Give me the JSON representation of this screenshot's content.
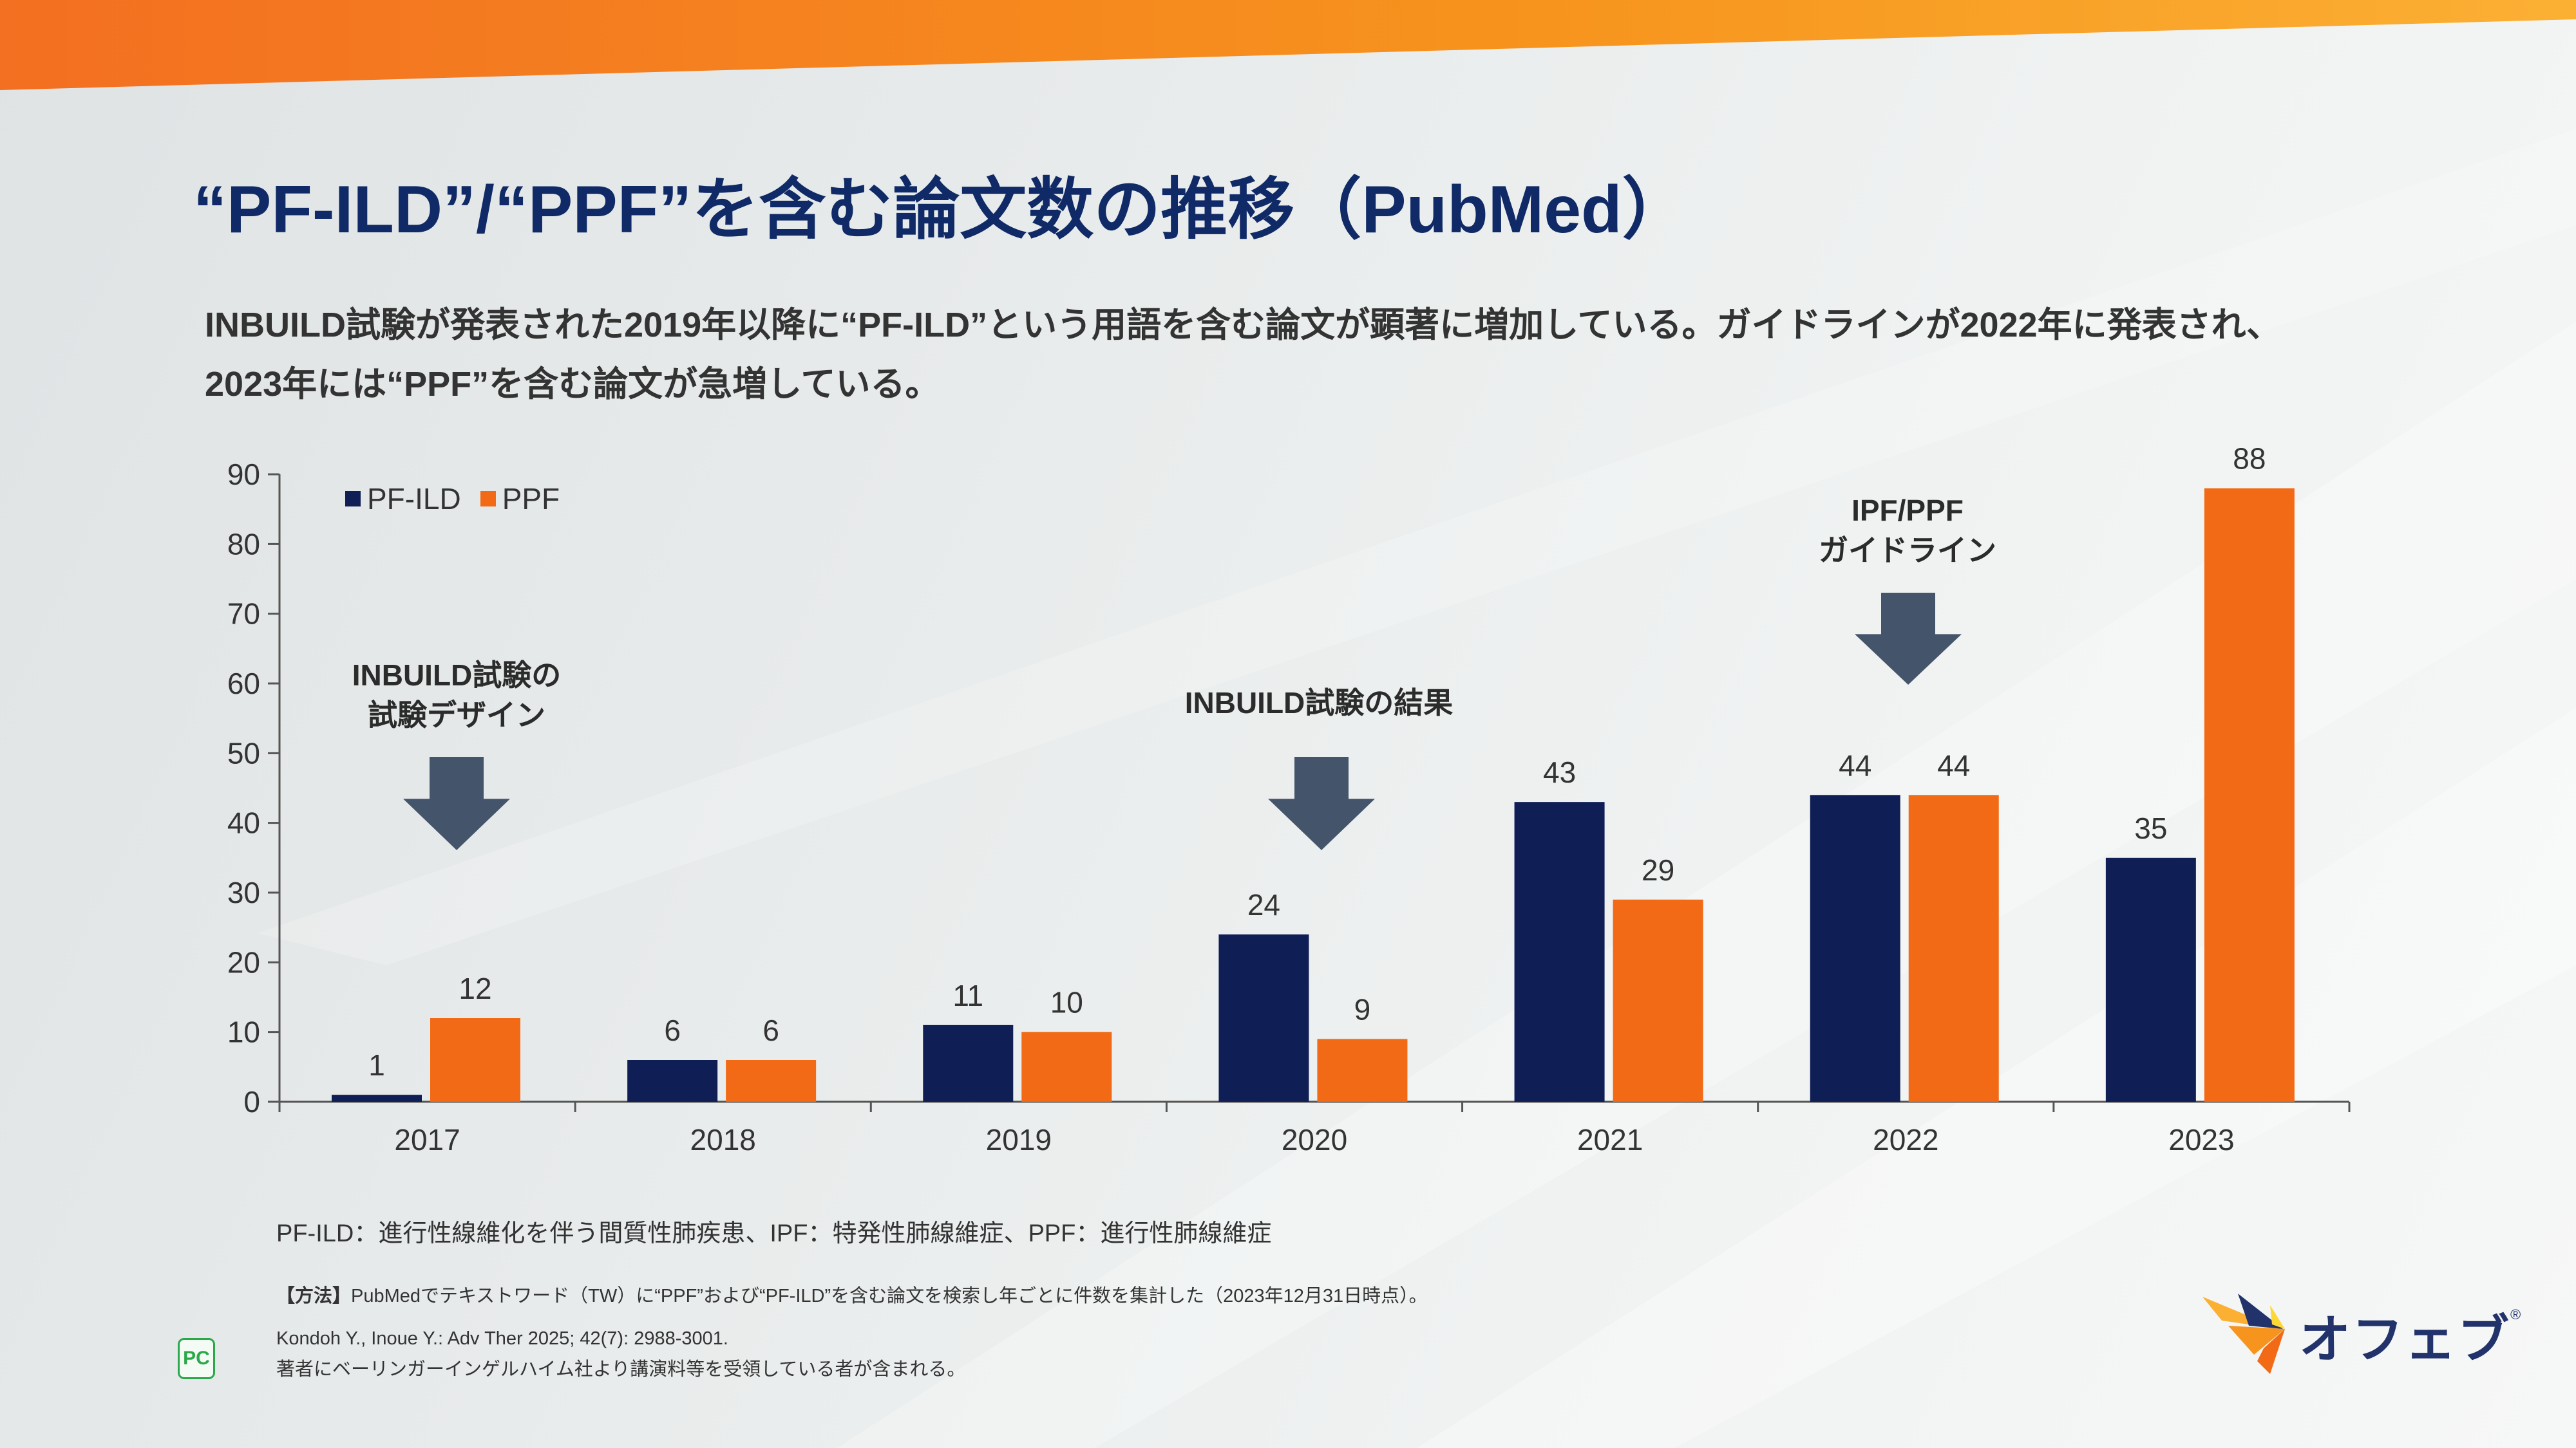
{
  "title": "“PF-ILD”/“PPF”を含む論文数の推移（PubMed）",
  "subtitle": [
    "INBUILD試験が発表された2019年以降に“PF-ILD”という用語を含む論文が顕著に増加している。ガイドラインが2022年に発表され、",
    "2023年には“PPF”を含む論文が急増している。"
  ],
  "colors": {
    "pf_ild": "#0f1f55",
    "ppf": "#f26a15",
    "arrow": "#44546a",
    "title": "#0f2a66"
  },
  "chart_data": {
    "type": "bar",
    "categories": [
      "2017",
      "2018",
      "2019",
      "2020",
      "2021",
      "2022",
      "2023"
    ],
    "series": [
      {
        "name": "PF-ILD",
        "values": [
          1,
          6,
          11,
          24,
          43,
          44,
          35
        ]
      },
      {
        "name": "PPF",
        "values": [
          12,
          6,
          10,
          9,
          29,
          44,
          88
        ]
      }
    ],
    "ylim": [
      0,
      90
    ],
    "yticks": [
      0,
      10,
      20,
      30,
      40,
      50,
      60,
      70,
      80,
      90
    ],
    "grid": false,
    "legend": "top-left",
    "data_labels": true,
    "annotations": [
      {
        "lines": [
          "INBUILD試験の",
          "試験デザイン"
        ],
        "category": "2017"
      },
      {
        "lines": [
          "INBUILD試験の結果"
        ],
        "category": "2020"
      },
      {
        "lines": [
          "IPF/PPF",
          "ガイドライン"
        ],
        "category": "2022"
      }
    ]
  },
  "footnotes": {
    "abbreviations": "PF-ILD：進行性線維化を伴う間質性肺疾患、IPF：特発性肺線維症、PPF：進行性肺線維症",
    "methods_label": "【方法】",
    "methods": "PubMedでテキストワード（TW）に“PPF”および“PF-ILD”を含む論文を検索し年ごとに件数を集計した（2023年12月31日時点）。",
    "citation": "Kondoh Y., Inoue Y.: Adv Ther 2025; 42(7): 2988-3001.",
    "disclosure": "著者にベーリンガーインゲルハイム社より講演料等を受領している者が含まれる。"
  },
  "logo": {
    "text": "オフェブ",
    "mark": "®",
    "badge": "PC"
  }
}
